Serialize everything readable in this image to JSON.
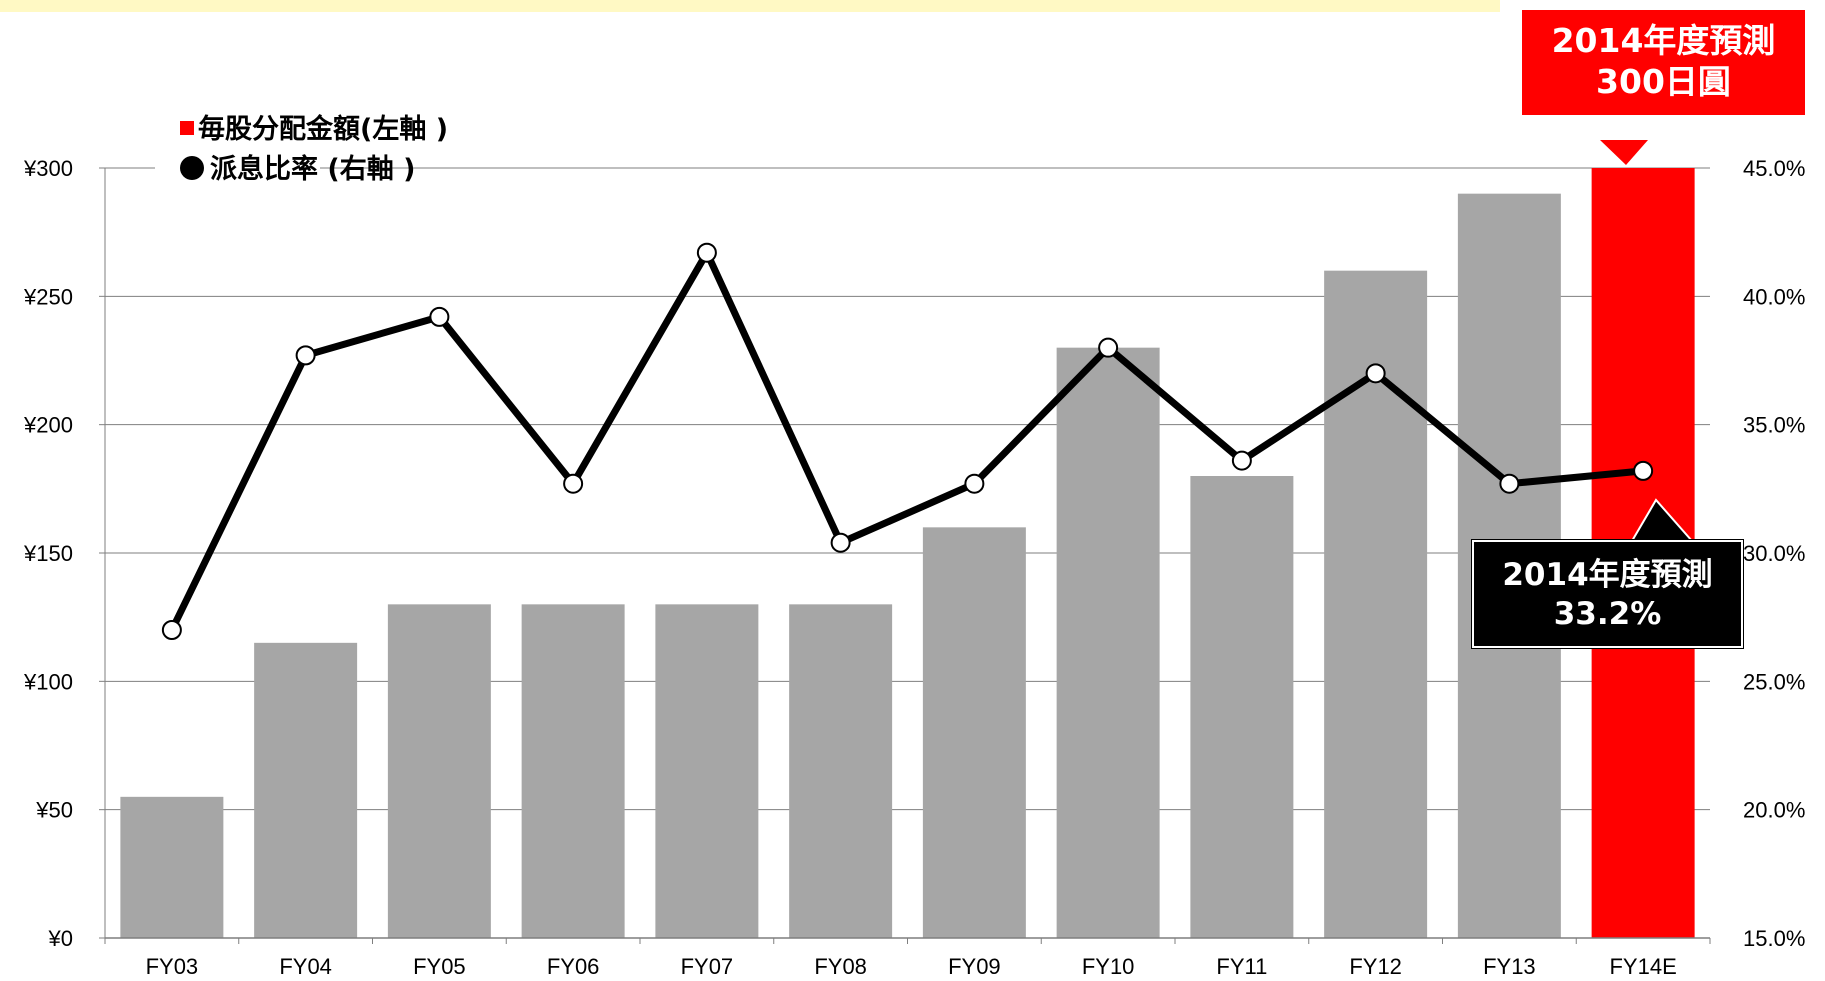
{
  "chart_data": {
    "type": "bar+line",
    "categories": [
      "FY03",
      "FY04",
      "FY05",
      "FY06",
      "FY07",
      "FY08",
      "FY09",
      "FY10",
      "FY11",
      "FY12",
      "FY13",
      "FY14E"
    ],
    "series": [
      {
        "name": "毎股分配金額(左軸 )",
        "type": "bar",
        "axis": "left",
        "values": [
          55,
          115,
          130,
          130,
          130,
          130,
          160,
          230,
          180,
          260,
          290,
          300
        ],
        "colors": [
          "#a6a6a6",
          "#a6a6a6",
          "#a6a6a6",
          "#a6a6a6",
          "#a6a6a6",
          "#a6a6a6",
          "#a6a6a6",
          "#a6a6a6",
          "#a6a6a6",
          "#a6a6a6",
          "#a6a6a6",
          "#ff0000"
        ]
      },
      {
        "name": "派息比率 (右軸 )",
        "type": "line",
        "axis": "right",
        "values": [
          27.0,
          37.7,
          39.2,
          32.7,
          41.7,
          30.4,
          32.7,
          38.0,
          33.6,
          37.0,
          32.7,
          33.2
        ],
        "color": "#000000"
      }
    ],
    "y_left": {
      "ticks": [
        "¥0",
        "¥50",
        "¥100",
        "¥150",
        "¥200",
        "¥250",
        "¥300"
      ],
      "range": [
        0,
        300
      ]
    },
    "y_right": {
      "ticks": [
        "15.0%",
        "20.0%",
        "25.0%",
        "30.0%",
        "35.0%",
        "40.0%",
        "45.0%"
      ],
      "range": [
        15,
        45
      ]
    },
    "grid": true,
    "legend": "top-left",
    "legend_marker_colors": [
      "#ff0000",
      "#000000"
    ]
  },
  "annotations": {
    "dividend_forecast": {
      "line1": "2014年度預測",
      "line2": "300日圓",
      "color": "#ff0000"
    },
    "payout_forecast": {
      "line1": "2014年度預測",
      "line2": "33.2%",
      "color": "#000000"
    }
  }
}
